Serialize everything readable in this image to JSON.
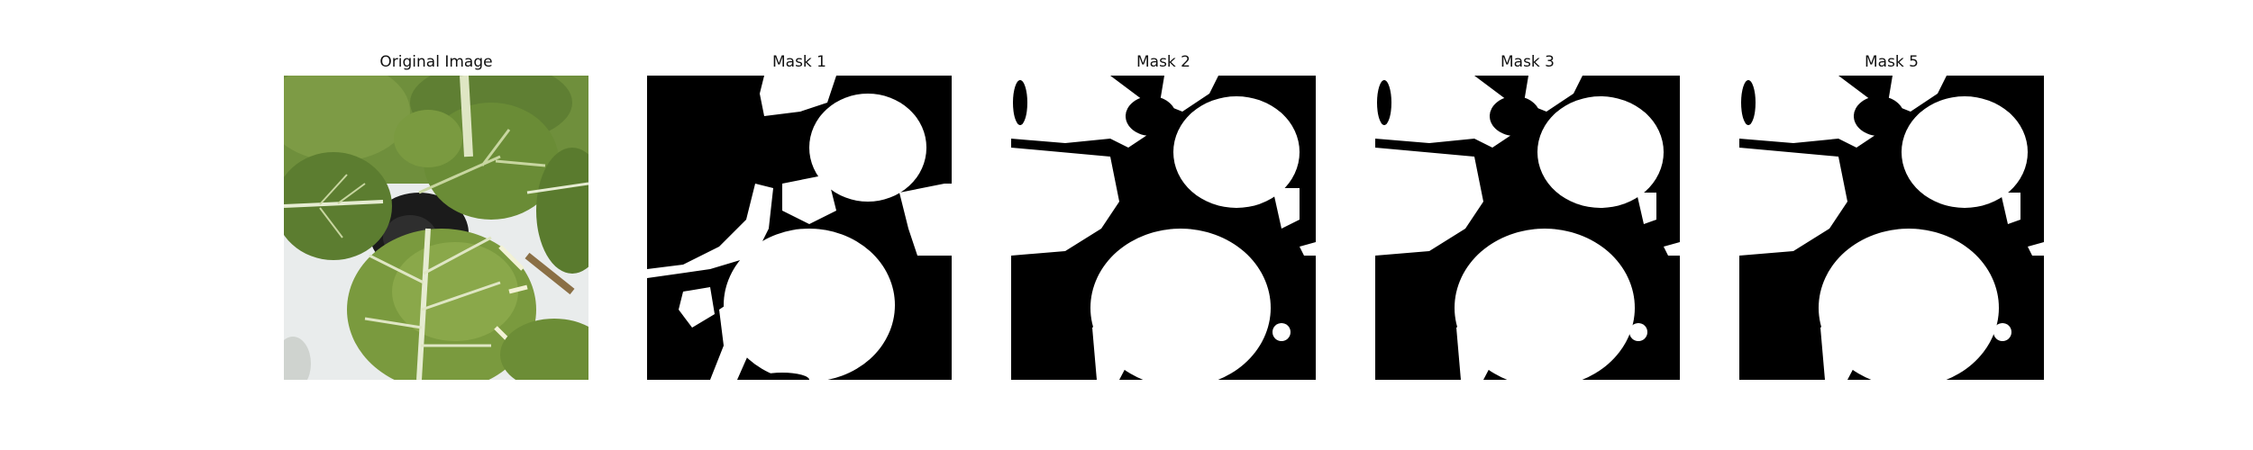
{
  "figure": {
    "panels": [
      {
        "title": "Original Image",
        "kind": "photo",
        "description": "pak choi leaves in a pot"
      },
      {
        "title": "Mask 1",
        "kind": "mask",
        "variant": 1
      },
      {
        "title": "Mask 2",
        "kind": "mask",
        "variant": 2
      },
      {
        "title": "Mask 3",
        "kind": "mask",
        "variant": 3
      },
      {
        "title": "Mask 5",
        "kind": "mask",
        "variant": 5
      }
    ]
  },
  "colors": {
    "mask_background": "#000000",
    "mask_foreground": "#ffffff",
    "leaf_dark": "#4d6b2a",
    "leaf_mid": "#6f8f3c",
    "leaf_light": "#a9bf72",
    "vein": "#e6ecd2",
    "tray": "#e9ecec",
    "pot": "#1b1b1b"
  }
}
